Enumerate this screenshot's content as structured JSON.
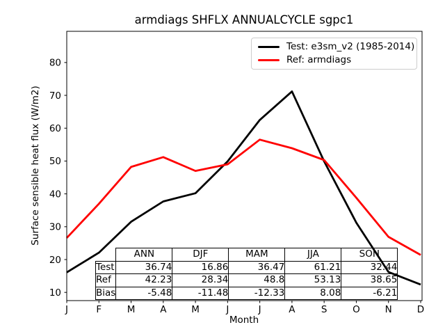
{
  "chart_data": {
    "type": "line",
    "title": "armdiags SHFLX ANNUALCYCLE sgpc1",
    "xlabel": "Month",
    "ylabel": "Surface sensible heat flux (W/m2)",
    "x_tick_labels": [
      "J",
      "F",
      "M",
      "A",
      "M",
      "J",
      "J",
      "A",
      "S",
      "O",
      "N",
      "D"
    ],
    "y_ticks": [
      10,
      20,
      30,
      40,
      50,
      60,
      70,
      80
    ],
    "ylim": [
      7.5,
      89.5
    ],
    "grid": false,
    "legend_position": "upper right",
    "series": [
      {
        "name": "Test: e3sm_v2 (1985-2014)",
        "color": "#000000",
        "values": [
          16.1,
          22.1,
          31.5,
          37.7,
          40.2,
          49.9,
          62.5,
          71.2,
          49.9,
          31.2,
          16.2,
          12.4
        ]
      },
      {
        "name": "Ref: armdiags",
        "color": "#ff0000",
        "values": [
          26.6,
          37.0,
          48.2,
          51.2,
          47.0,
          49.0,
          56.5,
          53.9,
          50.3,
          38.8,
          26.9,
          21.4
        ]
      }
    ],
    "stats_table": {
      "columns": [
        "ANN",
        "DJF",
        "MAM",
        "JJA",
        "SON"
      ],
      "rows": [
        {
          "label": "Test",
          "values": [
            "36.74",
            "16.86",
            "36.47",
            "61.21",
            "32.44"
          ]
        },
        {
          "label": "Ref",
          "values": [
            "42.23",
            "28.34",
            "48.8",
            "53.13",
            "38.65"
          ]
        },
        {
          "label": "Bias",
          "values": [
            "-5.48",
            "-11.48",
            "-12.33",
            "8.08",
            "-6.21"
          ]
        }
      ]
    }
  }
}
